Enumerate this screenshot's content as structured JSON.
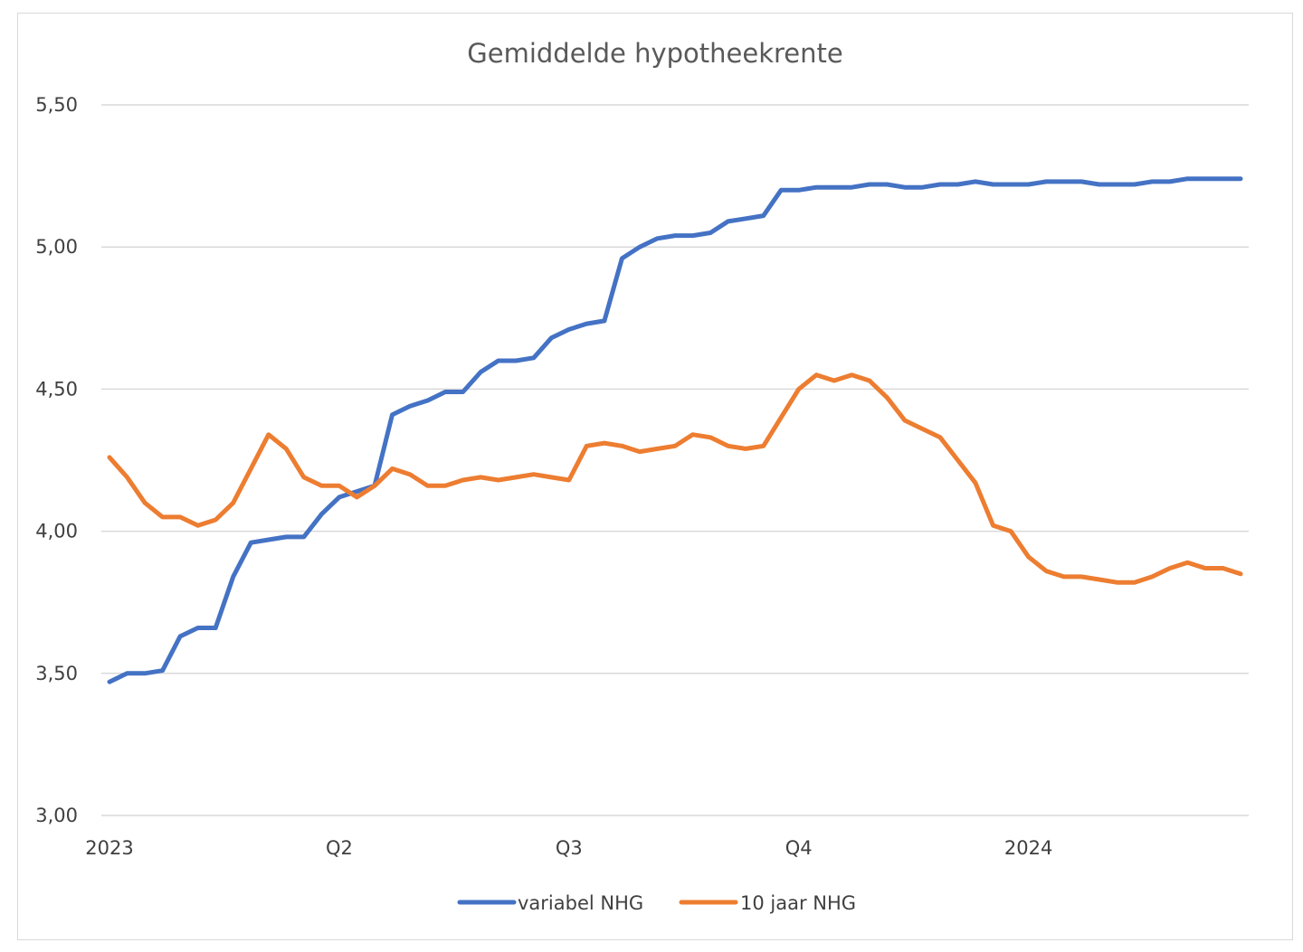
{
  "chart_data": {
    "type": "line",
    "title": "Gemiddelde hypotheekrente",
    "xlabel": "",
    "ylabel": "",
    "ylim": [
      3.0,
      5.5
    ],
    "yticks": [
      "3,00",
      "3,50",
      "4,00",
      "4,50",
      "5,00",
      "5,50"
    ],
    "ytick_values": [
      3.0,
      3.5,
      4.0,
      4.5,
      5.0,
      5.5
    ],
    "xtick_labels": [
      {
        "label": "2023",
        "index": 0
      },
      {
        "label": "Q2",
        "index": 13
      },
      {
        "label": "Q3",
        "index": 26
      },
      {
        "label": "Q4",
        "index": 39
      },
      {
        "label": "2024",
        "index": 52
      }
    ],
    "grid": true,
    "legend_position": "bottom",
    "series": [
      {
        "name": "variabel NHG",
        "color": "#4472C4",
        "values": [
          3.47,
          3.5,
          3.5,
          3.51,
          3.63,
          3.66,
          3.66,
          3.84,
          3.96,
          3.97,
          3.98,
          3.98,
          4.06,
          4.12,
          4.14,
          4.16,
          4.41,
          4.44,
          4.46,
          4.49,
          4.49,
          4.56,
          4.6,
          4.6,
          4.61,
          4.68,
          4.71,
          4.73,
          4.74,
          4.96,
          5.0,
          5.03,
          5.04,
          5.04,
          5.05,
          5.09,
          5.1,
          5.11,
          5.2,
          5.2,
          5.21,
          5.21,
          5.21,
          5.22,
          5.22,
          5.21,
          5.21,
          5.22,
          5.22,
          5.23,
          5.22,
          5.22,
          5.22,
          5.23,
          5.23,
          5.23,
          5.22,
          5.22,
          5.22,
          5.23,
          5.23,
          5.24,
          5.24,
          5.24,
          5.24
        ]
      },
      {
        "name": "10 jaar NHG",
        "color": "#ED7D31",
        "values": [
          4.26,
          4.19,
          4.1,
          4.05,
          4.05,
          4.02,
          4.04,
          4.1,
          4.22,
          4.34,
          4.29,
          4.19,
          4.16,
          4.16,
          4.12,
          4.16,
          4.22,
          4.2,
          4.16,
          4.16,
          4.18,
          4.19,
          4.18,
          4.19,
          4.2,
          4.19,
          4.18,
          4.3,
          4.31,
          4.3,
          4.28,
          4.29,
          4.3,
          4.34,
          4.33,
          4.3,
          4.29,
          4.3,
          4.4,
          4.5,
          4.55,
          4.53,
          4.55,
          4.53,
          4.47,
          4.39,
          4.36,
          4.33,
          4.25,
          4.17,
          4.02,
          4.0,
          3.91,
          3.86,
          3.84,
          3.84,
          3.83,
          3.82,
          3.82,
          3.84,
          3.87,
          3.89,
          3.87,
          3.87,
          3.85
        ]
      }
    ]
  }
}
